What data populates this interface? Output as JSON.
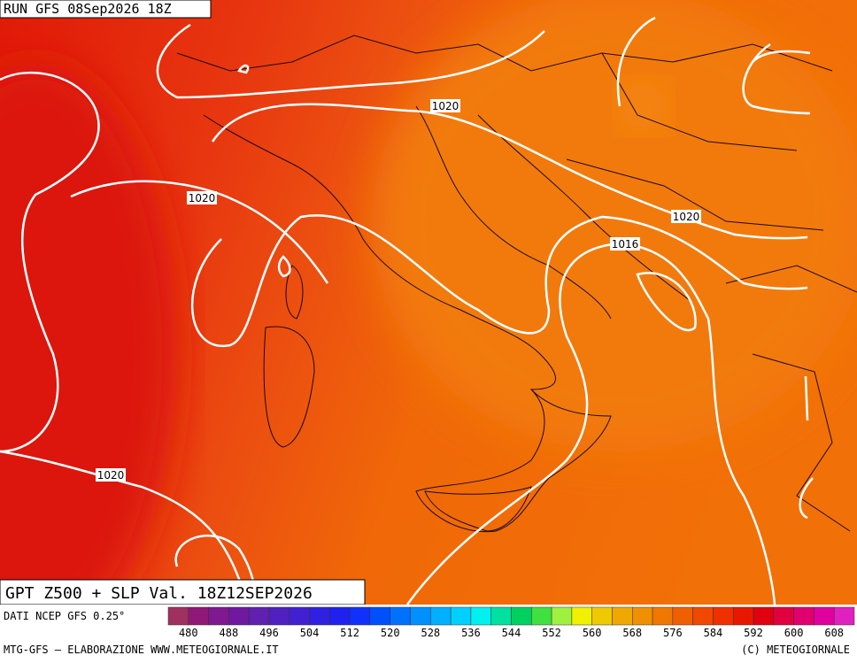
{
  "header": {
    "run": "RUN GFS 08Sep2026 18Z"
  },
  "map": {
    "title": "GPT Z500 + SLP Val. 18Z12SEP2026",
    "source": "DATI NCEP GFS 0.25°",
    "contour_labels": [
      1020,
      1020,
      1020,
      1016,
      1020
    ]
  },
  "legend": {
    "labels": [
      480,
      488,
      496,
      504,
      512,
      520,
      528,
      536,
      544,
      552,
      560,
      568,
      576,
      584,
      592,
      600,
      608
    ],
    "colors": [
      "#a03060",
      "#901878",
      "#801890",
      "#7018a0",
      "#6020b0",
      "#5020c0",
      "#4020d0",
      "#3020e0",
      "#2020f0",
      "#1030ff",
      "#0050ff",
      "#0070ff",
      "#0090ff",
      "#00b0ff",
      "#00d0ff",
      "#00f0f0",
      "#00e0a0",
      "#00d060",
      "#40e040",
      "#a0f040",
      "#f0f000",
      "#f0c800",
      "#f0a800",
      "#f09000",
      "#f07800",
      "#f06000",
      "#f04800",
      "#f03000",
      "#e81800",
      "#e00010",
      "#e00040",
      "#e00070",
      "#e000a0",
      "#e020c0"
    ]
  },
  "footer": {
    "left": "MTG-GFS — ELABORAZIONE WWW.METEOGIORNALE.IT",
    "right": "(C) METEOGIORNALE"
  }
}
